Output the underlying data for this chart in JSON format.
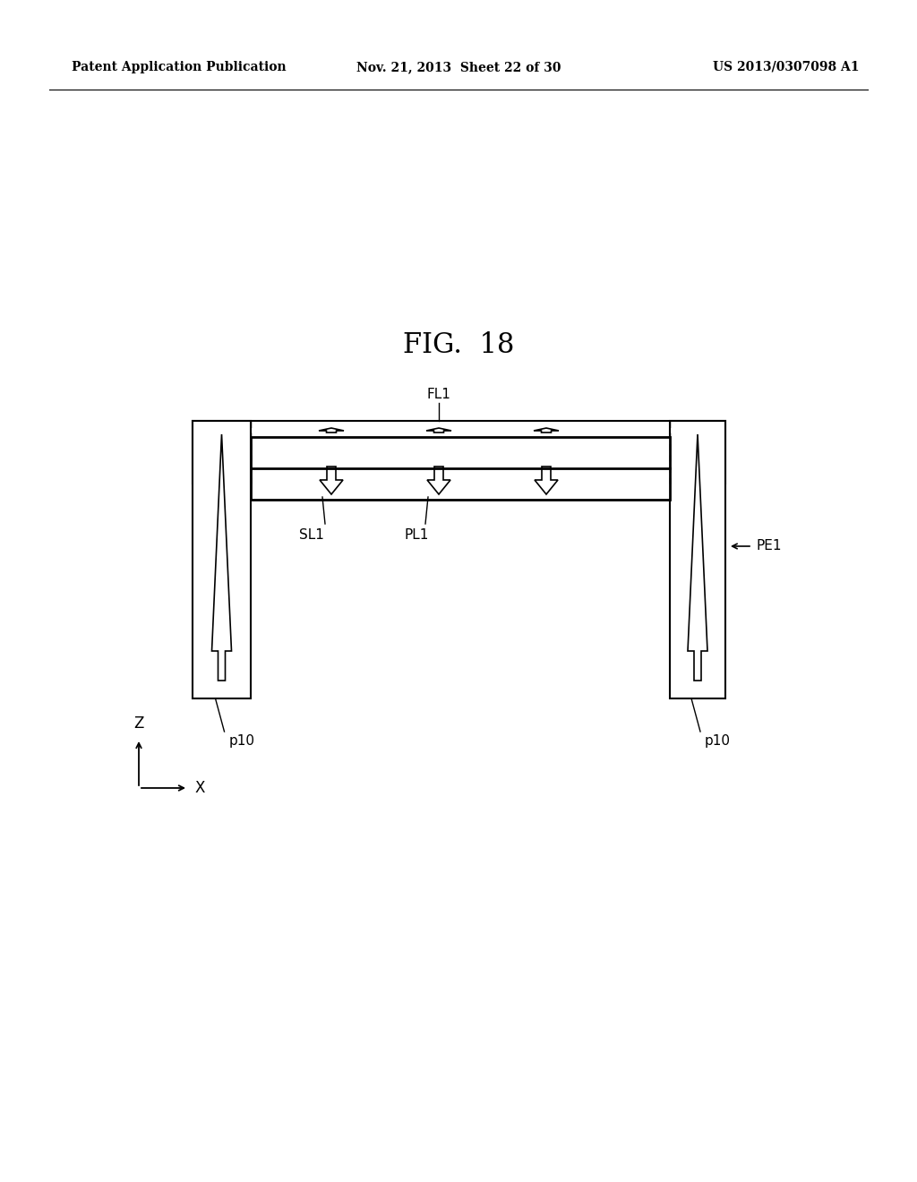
{
  "background_color": "#ffffff",
  "header_left": "Patent Application Publication",
  "header_mid": "Nov. 21, 2013  Sheet 22 of 30",
  "header_right": "US 2013/0307098 A1",
  "fig_label": "FIG.  18",
  "label_FL1": "FL1",
  "label_SL1": "SL1",
  "label_PL1": "PL1",
  "label_PE1": "PE1",
  "label_p10": "p10",
  "label_Z": "Z",
  "label_X": "X",
  "line_color": "#000000",
  "lw": 1.5
}
